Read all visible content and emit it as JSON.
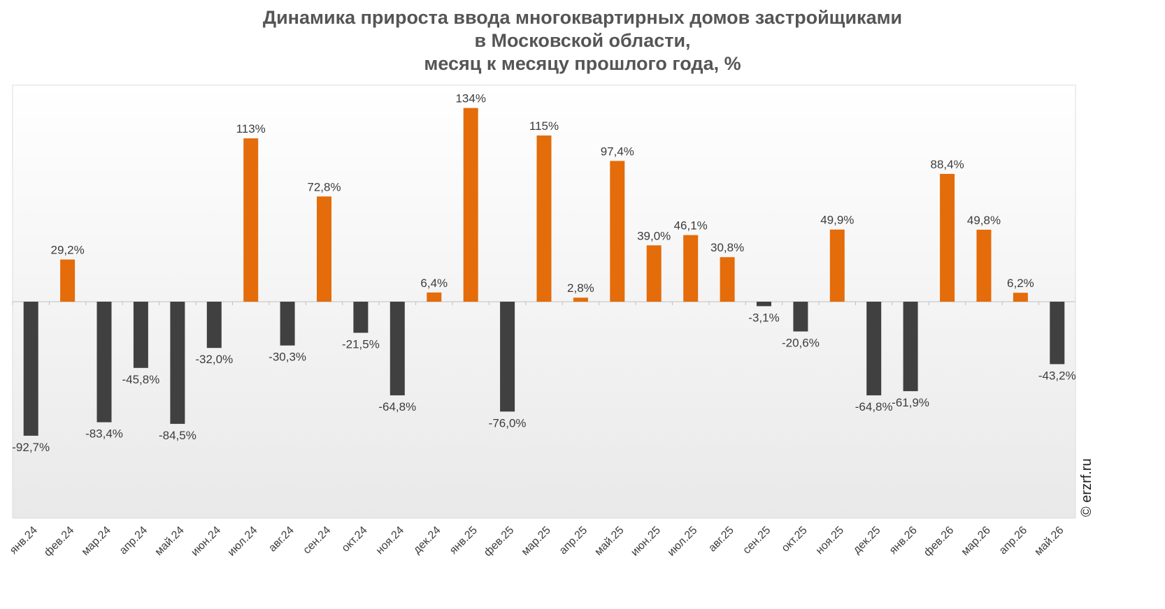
{
  "chart_data": {
    "type": "bar",
    "title_lines": [
      "Динамика прироста ввода многоквартирных домов застройщиками",
      "в Московской области,",
      "месяц к месяцу прошлого года, %"
    ],
    "categories": [
      "янв.24",
      "фев.24",
      "мар.24",
      "апр.24",
      "май.24",
      "июн.24",
      "июл.24",
      "авг.24",
      "сен.24",
      "окт.24",
      "ноя.24",
      "дек.24",
      "янв.25",
      "фев.25",
      "мар.25",
      "апр.25",
      "май.25",
      "июн.25",
      "июл.25",
      "авг.25",
      "сен.25",
      "окт.25",
      "ноя.25",
      "дек.25",
      "янв.26",
      "фев.26",
      "мар.26",
      "апр.26",
      "май.26"
    ],
    "values": [
      -92.7,
      29.2,
      -83.4,
      -45.8,
      -84.5,
      -32.0,
      113,
      -30.3,
      72.8,
      -21.5,
      -64.8,
      6.4,
      134,
      -76.0,
      115,
      2.8,
      97.4,
      39.0,
      46.1,
      30.8,
      -3.1,
      -20.6,
      49.9,
      -64.8,
      -61.9,
      88.4,
      49.8,
      6.2,
      -43.2
    ],
    "data_labels": [
      "-92,7%",
      "29,2%",
      "-83,4%",
      "-45,8%",
      "-84,5%",
      "-32,0%",
      "113%",
      "-30,3%",
      "72,8%",
      "-21,5%",
      "-64,8%",
      "6,4%",
      "134%",
      "-76,0%",
      "115%",
      "2,8%",
      "97,4%",
      "39,0%",
      "46,1%",
      "30,8%",
      "-3,1%",
      "-20,6%",
      "49,9%",
      "-64,8%",
      "-61,9%",
      "88,4%",
      "49,8%",
      "6,2%",
      "-43,2%"
    ],
    "ylim": [
      -150,
      150
    ],
    "grid": false,
    "colors": {
      "positive": "#E46C0A",
      "negative": "#404040",
      "axis": "#bfbfbf"
    },
    "watermark": "© erzrf.ru"
  }
}
